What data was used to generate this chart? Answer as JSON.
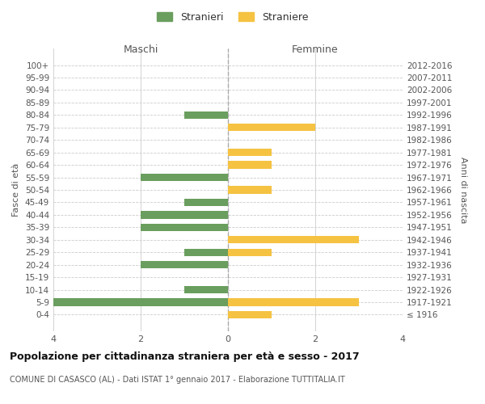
{
  "age_groups": [
    "100+",
    "95-99",
    "90-94",
    "85-89",
    "80-84",
    "75-79",
    "70-74",
    "65-69",
    "60-64",
    "55-59",
    "50-54",
    "45-49",
    "40-44",
    "35-39",
    "30-34",
    "25-29",
    "20-24",
    "15-19",
    "10-14",
    "5-9",
    "0-4"
  ],
  "birth_years": [
    "≤ 1916",
    "1917-1921",
    "1922-1926",
    "1927-1931",
    "1932-1936",
    "1937-1941",
    "1942-1946",
    "1947-1951",
    "1952-1956",
    "1957-1961",
    "1962-1966",
    "1967-1971",
    "1972-1976",
    "1977-1981",
    "1982-1986",
    "1987-1991",
    "1992-1996",
    "1997-2001",
    "2002-2006",
    "2007-2011",
    "2012-2016"
  ],
  "maschi": [
    0,
    0,
    0,
    0,
    1,
    0,
    0,
    0,
    0,
    2,
    0,
    1,
    2,
    2,
    0,
    1,
    2,
    0,
    1,
    4,
    0
  ],
  "femmine": [
    0,
    0,
    0,
    0,
    0,
    2,
    0,
    1,
    1,
    0,
    1,
    0,
    0,
    0,
    3,
    1,
    0,
    0,
    0,
    3,
    1
  ],
  "color_maschi": "#6a9e5e",
  "color_femmine": "#f5c242",
  "title_main": "Popolazione per cittadinanza straniera per età e sesso - 2017",
  "title_sub": "COMUNE DI CASASCO (AL) - Dati ISTAT 1° gennaio 2017 - Elaborazione TUTTITALIA.IT",
  "legend_maschi": "Stranieri",
  "legend_femmine": "Straniere",
  "xlabel_left": "Maschi",
  "xlabel_right": "Femmine",
  "ylabel_left": "Fasce di età",
  "ylabel_right": "Anni di nascita",
  "xlim": 4,
  "bg_color": "#ffffff",
  "grid_color": "#cccccc"
}
